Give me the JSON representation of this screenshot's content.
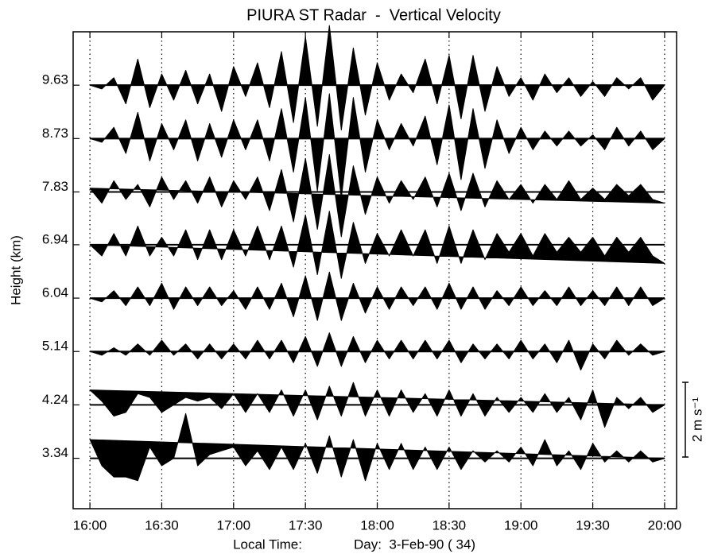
{
  "chart_data": {
    "type": "wiggle",
    "title": "PIURA ST Radar  -  Vertical Velocity",
    "x_label": "Local Time:",
    "x_label_2": "Day:  3-Feb-90 ( 34)",
    "y_label": "Height (km)",
    "xlim": [
      -7,
      245
    ],
    "xticks": [
      {
        "value": 0,
        "label": "16:00"
      },
      {
        "value": 30,
        "label": "16:30"
      },
      {
        "value": 60,
        "label": "17:00"
      },
      {
        "value": 90,
        "label": "17:30"
      },
      {
        "value": 120,
        "label": "18:00"
      },
      {
        "value": 150,
        "label": "18:30"
      },
      {
        "value": 180,
        "label": "19:00"
      },
      {
        "value": 210,
        "label": "19:30"
      },
      {
        "value": 240,
        "label": "20:00"
      }
    ],
    "ylim": [
      2.49,
      10.53
    ],
    "yticks": [
      3.34,
      4.24,
      5.14,
      6.04,
      6.94,
      7.83,
      8.73,
      9.63
    ],
    "grid": "dotted",
    "color": "#000000",
    "scale_bar": {
      "value": 2,
      "label": "2 m s⁻¹"
    },
    "x": [
      0,
      5,
      10,
      15,
      20,
      25,
      30,
      35,
      40,
      45,
      50,
      55,
      60,
      65,
      70,
      75,
      80,
      85,
      90,
      95,
      100,
      105,
      110,
      115,
      120,
      125,
      130,
      135,
      140,
      145,
      150,
      155,
      160,
      165,
      170,
      175,
      180,
      185,
      190,
      195,
      200,
      205,
      210,
      215,
      220,
      225,
      230,
      235,
      240
    ],
    "series": [
      {
        "height": 9.63,
        "values": [
          0,
          -0.1,
          0.2,
          -0.5,
          0.7,
          -0.6,
          0.3,
          -0.4,
          0.4,
          -0.5,
          0.3,
          -0.7,
          0.5,
          -0.3,
          0.6,
          -0.6,
          0.9,
          -1.0,
          1.3,
          -1.1,
          1.6,
          -1.2,
          1.0,
          -0.8,
          0.6,
          -0.4,
          0.3,
          -0.2,
          0.7,
          -0.5,
          0.8,
          -0.9,
          0.8,
          -0.7,
          0.5,
          -0.3,
          0.2,
          -0.4,
          0.3,
          -0.2,
          0.2,
          -0.3,
          0.1,
          -0.3,
          0.2,
          -0.1,
          0.2,
          -0.4,
          0
        ]
      },
      {
        "height": 8.73,
        "values": [
          0,
          -0.1,
          0.3,
          -0.4,
          0.7,
          -0.6,
          0.4,
          -0.3,
          0.5,
          -0.6,
          0.4,
          -0.5,
          0.5,
          -0.3,
          0.5,
          -0.6,
          0.8,
          -0.9,
          1.1,
          -1.4,
          1.2,
          -1.6,
          1.1,
          -0.9,
          0.5,
          -0.3,
          0.4,
          -0.2,
          0.6,
          -0.7,
          0.9,
          -1.1,
          0.8,
          -0.8,
          0.5,
          -0.4,
          0.3,
          -0.3,
          0.2,
          -0.2,
          0.2,
          -0.2,
          0.1,
          -0.3,
          0.3,
          -0.2,
          0.2,
          -0.3,
          0
        ]
      },
      {
        "height": 7.83,
        "values": [
          0.1,
          -0.3,
          0.3,
          -0.2,
          0.2,
          -0.4,
          0.4,
          -0.2,
          0.3,
          -0.3,
          0.4,
          -0.4,
          0.3,
          -0.2,
          0.4,
          -0.5,
          0.6,
          -0.8,
          0.9,
          -1.0,
          1.0,
          -1.2,
          0.7,
          -0.6,
          0.4,
          -0.3,
          0.3,
          -0.2,
          0.4,
          -0.4,
          0.5,
          -0.5,
          0.5,
          -0.4,
          0.3,
          -0.2,
          0.2,
          -0.3,
          0.2,
          -0.2,
          0.3,
          -0.2,
          0.1,
          -0.2,
          0.2,
          -0.1,
          0.2,
          -0.2,
          -0.3
        ]
      },
      {
        "height": 6.94,
        "values": [
          0,
          -0.3,
          0.3,
          -0.3,
          0.5,
          -0.3,
          0.2,
          -0.3,
          0.4,
          -0.4,
          0.4,
          -0.4,
          0.4,
          -0.3,
          0.5,
          -0.4,
          0.5,
          -0.6,
          0.8,
          -0.8,
          0.9,
          -0.9,
          0.6,
          -0.5,
          0.3,
          -0.3,
          0.4,
          -0.3,
          0.4,
          -0.5,
          0.5,
          -0.5,
          0.4,
          -0.4,
          0.3,
          -0.2,
          0.3,
          -0.3,
          0.3,
          -0.2,
          0.2,
          -0.2,
          0.2,
          -0.3,
          0.2,
          -0.2,
          0.2,
          -0.3,
          -0.5
        ]
      },
      {
        "height": 6.04,
        "values": [
          0,
          -0.1,
          0.2,
          -0.2,
          0.3,
          -0.2,
          0.4,
          -0.3,
          0.3,
          -0.2,
          0.3,
          -0.2,
          0.2,
          -0.3,
          0.3,
          -0.3,
          0.4,
          -0.5,
          0.6,
          -0.6,
          0.7,
          -0.6,
          0.4,
          -0.4,
          0.3,
          -0.3,
          0.3,
          -0.2,
          0.3,
          -0.3,
          0.4,
          -0.3,
          0.3,
          -0.3,
          0.2,
          -0.2,
          0.3,
          -0.2,
          0.2,
          -0.2,
          0.3,
          -0.2,
          0.2,
          -0.2,
          0.3,
          -0.2,
          0.3,
          -0.2,
          0
        ]
      },
      {
        "height": 5.14,
        "values": [
          0,
          -0.1,
          0.1,
          -0.1,
          0.2,
          -0.1,
          0.3,
          -0.1,
          0.2,
          -0.2,
          0.2,
          -0.2,
          0.2,
          -0.2,
          0.3,
          -0.2,
          0.3,
          -0.3,
          0.4,
          -0.4,
          0.5,
          -0.4,
          0.4,
          -0.3,
          0.3,
          -0.2,
          0.3,
          -0.2,
          0.3,
          -0.2,
          0.3,
          -0.3,
          0.2,
          -0.2,
          0.2,
          -0.2,
          0.3,
          -0.2,
          0.2,
          -0.3,
          0.3,
          -0.5,
          0.2,
          -0.2,
          0.3,
          -0.1,
          0.2,
          -0.1,
          0
        ]
      },
      {
        "height": 4.24,
        "values": [
          0.4,
          0.1,
          -0.3,
          -0.2,
          0.3,
          0.2,
          -0.2,
          0,
          0.2,
          0.1,
          0.2,
          -0.1,
          0.3,
          -0.2,
          0.3,
          -0.2,
          0.4,
          -0.3,
          0.4,
          -0.4,
          0.5,
          -0.3,
          0.6,
          -0.3,
          0.4,
          -0.3,
          0.4,
          -0.2,
          0.3,
          -0.3,
          0.4,
          -0.3,
          0.3,
          -0.3,
          0.2,
          -0.2,
          0.2,
          -0.2,
          0.3,
          -0.2,
          0.2,
          -0.4,
          0.4,
          -0.6,
          0.2,
          -0.1,
          0.2,
          -0.2,
          0
        ]
      },
      {
        "height": 3.34,
        "values": [
          0.5,
          -0.2,
          -0.5,
          -0.5,
          -0.6,
          0.3,
          -0.2,
          0,
          1.2,
          -0.2,
          0.1,
          0.2,
          0.3,
          -0.2,
          0.2,
          -0.3,
          0.3,
          -0.3,
          0.4,
          -0.4,
          0.6,
          -0.5,
          0.5,
          -0.6,
          0.4,
          -0.3,
          0.4,
          -0.3,
          0.3,
          -0.3,
          0.3,
          -0.3,
          0.2,
          -0.1,
          0.2,
          -0.1,
          0.3,
          -0.2,
          0.5,
          -0.2,
          0.2,
          -0.3,
          0.4,
          -0.1,
          0.2,
          -0.1,
          0.2,
          -0.1,
          0
        ]
      }
    ]
  }
}
